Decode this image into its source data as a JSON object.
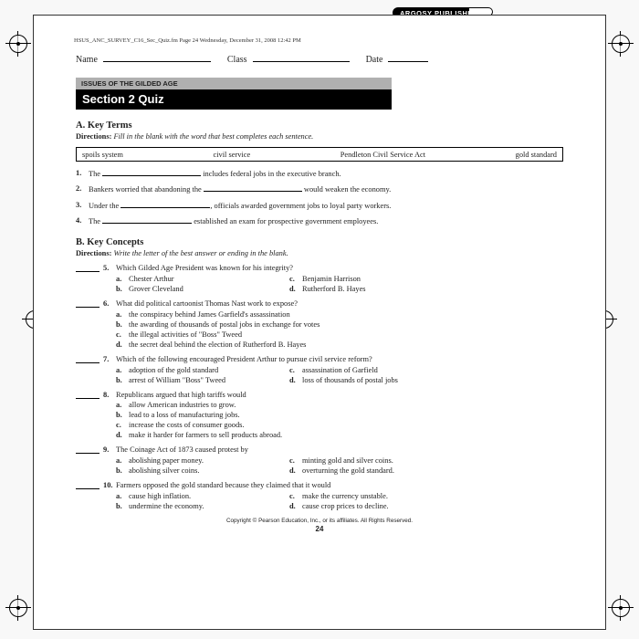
{
  "publisher_badge": "ARGOSY PUBLISHING",
  "page_path": "HSUS_ANC_SURVEY_C16_Sec_Quiz.fm  Page 24  Wednesday, December 31, 2008  12:42 PM",
  "header": {
    "name_label": "Name",
    "class_label": "Class",
    "date_label": "Date"
  },
  "topic": "ISSUES OF THE GILDED AGE",
  "title": "Section 2 Quiz",
  "sectionA": {
    "heading": "A.   Key Terms",
    "directions_label": "Directions:",
    "directions_text": "Fill in the blank with the word that best completes each sentence.",
    "terms": [
      "spoils system",
      "civil service",
      "Pendleton Civil Service Act",
      "gold standard"
    ],
    "items": [
      {
        "pre": "The ",
        "post": " includes federal jobs in the executive branch."
      },
      {
        "pre": "Bankers worried that abandoning the ",
        "post": " would weaken the economy."
      },
      {
        "pre": "Under the ",
        "post": ", officials awarded government jobs to loyal party workers."
      },
      {
        "pre": "The ",
        "post": " established an exam for prospective government employees."
      }
    ]
  },
  "sectionB": {
    "heading": "B.   Key Concepts",
    "directions_label": "Directions:",
    "directions_text": "Write the letter of the best answer or ending in the blank.",
    "questions": [
      {
        "n": "5.",
        "stem": "Which Gilded Age President was known for his integrity?",
        "layout": "two-col",
        "opts": [
          [
            "a.",
            "Chester Arthur"
          ],
          [
            "c.",
            "Benjamin Harrison"
          ],
          [
            "b.",
            "Grover Cleveland"
          ],
          [
            "d.",
            "Rutherford B. Hayes"
          ]
        ]
      },
      {
        "n": "6.",
        "stem": "What did political cartoonist Thomas Nast work to expose?",
        "layout": "one-col",
        "opts": [
          [
            "a.",
            "the conspiracy behind James Garfield's assassination"
          ],
          [
            "b.",
            "the awarding of thousands of postal jobs in exchange for votes"
          ],
          [
            "c.",
            "the illegal activities of \"Boss\" Tweed"
          ],
          [
            "d.",
            "the secret deal behind the election of Rutherford B. Hayes"
          ]
        ]
      },
      {
        "n": "7.",
        "stem": "Which of the following encouraged President Arthur to pursue civil service reform?",
        "layout": "two-col",
        "opts": [
          [
            "a.",
            "adoption of the gold standard"
          ],
          [
            "c.",
            "assassination of Garfield"
          ],
          [
            "b.",
            "arrest of William \"Boss\" Tweed"
          ],
          [
            "d.",
            "loss of thousands of postal jobs"
          ]
        ]
      },
      {
        "n": "8.",
        "stem": "Republicans argued that high tariffs would",
        "layout": "one-col",
        "opts": [
          [
            "a.",
            "allow American industries to grow."
          ],
          [
            "b.",
            "lead to a loss of manufacturing jobs."
          ],
          [
            "c.",
            "increase the costs of consumer goods."
          ],
          [
            "d.",
            "make it harder for farmers to sell products abroad."
          ]
        ]
      },
      {
        "n": "9.",
        "stem": "The Coinage Act of 1873 caused protest by",
        "layout": "two-col",
        "opts": [
          [
            "a.",
            "abolishing paper money."
          ],
          [
            "c.",
            "minting gold and silver coins."
          ],
          [
            "b.",
            "abolishing silver coins."
          ],
          [
            "d.",
            "overturning the gold standard."
          ]
        ]
      },
      {
        "n": "10.",
        "stem": "Farmers opposed the gold standard because they claimed that it would",
        "layout": "two-col",
        "opts": [
          [
            "a.",
            "cause high inflation."
          ],
          [
            "c.",
            "make the currency unstable."
          ],
          [
            "b.",
            "undermine the economy."
          ],
          [
            "d.",
            "cause crop prices to decline."
          ]
        ]
      }
    ]
  },
  "copyright": "Copyright © Pearson Education, Inc., or its affiliates. All Rights Reserved.",
  "page_number": "24"
}
